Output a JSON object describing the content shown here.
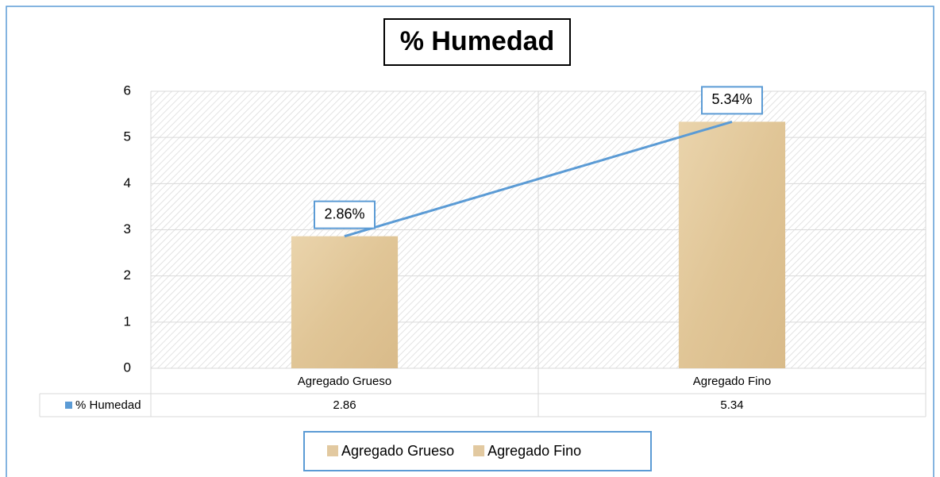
{
  "chart_data": {
    "type": "bar",
    "title": "% Humedad",
    "categories": [
      "Agregado Grueso",
      "Agregado Fino"
    ],
    "series_name": "% Humedad",
    "values": [
      2.86,
      5.34
    ],
    "value_labels": [
      "2.86%",
      "5.34%"
    ],
    "color": "#e2c9a0",
    "line_color": "#5b9bd5",
    "ylim": [
      0,
      6
    ],
    "yticks": [
      0,
      1,
      2,
      3,
      4,
      5,
      6
    ],
    "grid": true
  }
}
